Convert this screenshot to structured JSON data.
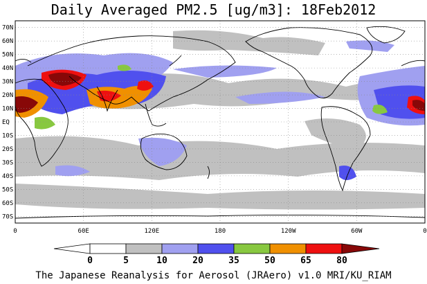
{
  "title": "Daily Averaged PM2.5 [ug/m3]: 18Feb2012",
  "footer": "The Japanese Reanalysis for Aerosol (JRAero) v1.0 MRI/KU_RIAM",
  "lat_labels": [
    "70N",
    "60N",
    "50N",
    "40N",
    "30N",
    "20N",
    "10N",
    "EQ",
    "10S",
    "20S",
    "30S",
    "40S",
    "50S",
    "60S",
    "70S"
  ],
  "lon_labels": [
    "0",
    "60E",
    "120E",
    "180",
    "120W",
    "60W",
    "0"
  ],
  "colorbar": {
    "ticks": [
      "0",
      "5",
      "10",
      "20",
      "35",
      "50",
      "65",
      "80"
    ],
    "colors": [
      "#ffffff",
      "#c0c0c0",
      "#a0a0f0",
      "#5050ee",
      "#88c840",
      "#f09000",
      "#ee1010",
      "#880808"
    ]
  },
  "chart_data": {
    "type": "map",
    "title": "Daily Averaged PM2.5 [ug/m3]: 18Feb2012",
    "lat_range": [
      -75,
      75
    ],
    "lon_range": [
      0,
      360
    ],
    "levels": [
      0,
      5,
      10,
      20,
      35,
      50,
      65,
      80
    ],
    "grid": true,
    "hotspots": [
      {
        "region": "West Africa Sahel",
        "level": ">80"
      },
      {
        "region": "Arabian Peninsula",
        "level": ">80"
      },
      {
        "region": "Indo-Gangetic Plain",
        "level": "50-80"
      },
      {
        "region": "Eastern China",
        "level": "50-80"
      },
      {
        "region": "Central Africa",
        "level": "35-50"
      }
    ]
  }
}
